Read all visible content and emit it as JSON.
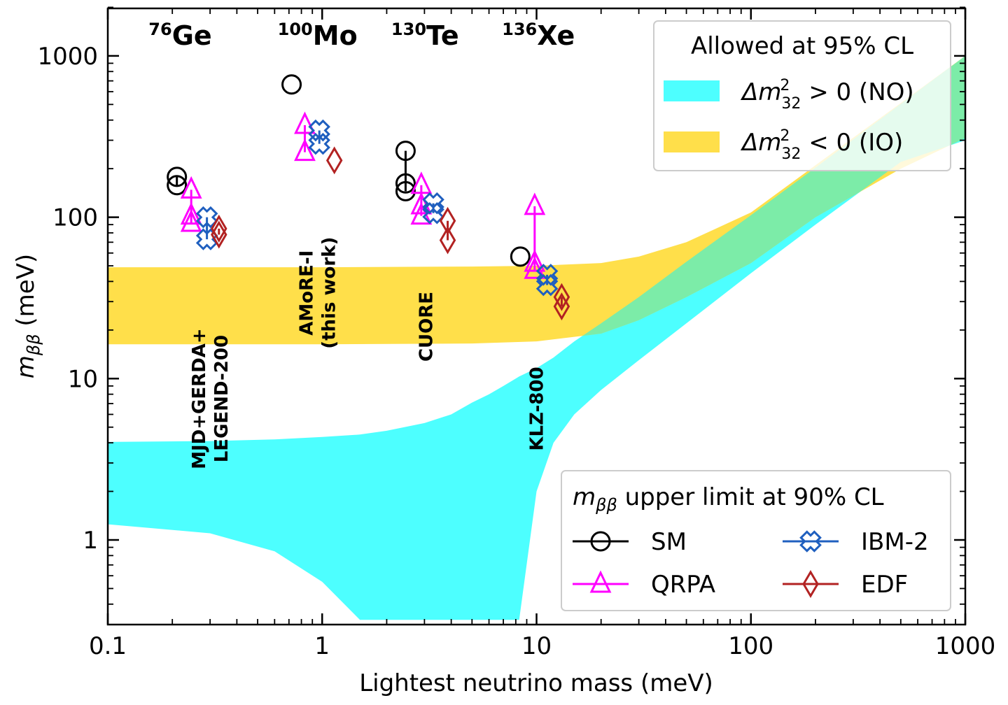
{
  "chart_data": {
    "type": "scatter",
    "x_scale": "log",
    "y_scale": "log",
    "xlabel": "Lightest neutrino mass (meV)",
    "ylabel_main": "m",
    "ylabel_sub": "ββ",
    "ylabel_unit": " (meV)",
    "xlim": [
      0.1,
      1000
    ],
    "ylim": [
      0.32,
      2000
    ],
    "x_ticks": [
      {
        "value": 0.1,
        "label": "0.1"
      },
      {
        "value": 1,
        "label": "1"
      },
      {
        "value": 10,
        "label": "10"
      },
      {
        "value": 100,
        "label": "100"
      },
      {
        "value": 1000,
        "label": "1000"
      }
    ],
    "y_ticks": [
      {
        "value": 1,
        "label": "1"
      },
      {
        "value": 10,
        "label": "10"
      },
      {
        "value": 100,
        "label": "100"
      },
      {
        "value": 1000,
        "label": "1000"
      }
    ],
    "isotopes": [
      {
        "mass": "76",
        "element": "Ge",
        "x": 0.155
      },
      {
        "mass": "100",
        "element": "Mo",
        "x": 0.62
      },
      {
        "mass": "130",
        "element": "Te",
        "x": 2.1
      },
      {
        "mass": "136",
        "element": "Xe",
        "x": 6.9
      }
    ],
    "experiments": [
      {
        "lines": [
          "MJD+GERDA+",
          "LEGEND-200"
        ],
        "x": 0.3,
        "y": 7.5
      },
      {
        "lines": [
          "AMoRE-I",
          "(this work)"
        ],
        "x": 0.95,
        "y": 34
      },
      {
        "lines": [
          "CUORE"
        ],
        "x": 3.05,
        "y": 21
      },
      {
        "lines": [
          "KLZ-800"
        ],
        "x": 10,
        "y": 6.5
      }
    ],
    "bands": [
      {
        "name": "NO",
        "color": "#4dffff",
        "x": [
          0.1,
          0.3,
          0.6,
          1,
          1.5,
          2,
          3,
          4,
          5,
          6,
          7,
          8,
          8.3,
          10,
          12,
          15,
          20,
          30,
          50,
          100,
          200,
          500,
          1000
        ],
        "lower": [
          1.25,
          1.1,
          0.85,
          0.55,
          0.32,
          0.32,
          0.32,
          0.32,
          0.32,
          0.32,
          0.32,
          0.32,
          0.32,
          2.0,
          4.0,
          6.0,
          8.5,
          13,
          22,
          45,
          90,
          220,
          300
        ],
        "upper": [
          4.05,
          4.1,
          4.2,
          4.35,
          4.5,
          4.75,
          5.3,
          6.0,
          7.1,
          8.0,
          9.0,
          10.0,
          10.3,
          11.6,
          13.5,
          17,
          22,
          32,
          53,
          103,
          203,
          503,
          1000
        ]
      },
      {
        "name": "IO",
        "color": "#ffdf4a",
        "x": [
          0.1,
          1,
          5,
          10,
          20,
          30,
          50,
          100,
          200,
          500,
          1000
        ],
        "lower": [
          16.3,
          16.3,
          16.5,
          17.0,
          19,
          23,
          32,
          52,
          100,
          200,
          310
        ],
        "upper": [
          49,
          49,
          49.5,
          50,
          52,
          57,
          70,
          107,
          210,
          510,
          1000
        ]
      }
    ],
    "overlap_color": "#50f0c8",
    "series": [
      {
        "name": "SM",
        "color": "#000000",
        "marker": "circle",
        "points": [
          {
            "x": 0.21,
            "y": 178
          },
          {
            "x": 0.21,
            "y": 158
          },
          {
            "x": 0.72,
            "y": 665
          },
          {
            "x": 2.45,
            "y": 258
          },
          {
            "x": 2.45,
            "y": 162
          },
          {
            "x": 2.45,
            "y": 145
          },
          {
            "x": 8.4,
            "y": 57
          }
        ],
        "errorbars": [
          {
            "x": 0.21,
            "y1": 158,
            "y2": 178
          },
          {
            "x": 2.45,
            "y1": 145,
            "y2": 258
          }
        ]
      },
      {
        "name": "QRPA",
        "color": "#ff00ff",
        "marker": "triangle",
        "points": [
          {
            "x": 0.245,
            "y": 148
          },
          {
            "x": 0.245,
            "y": 102
          },
          {
            "x": 0.245,
            "y": 92
          },
          {
            "x": 0.83,
            "y": 372
          },
          {
            "x": 0.83,
            "y": 253
          },
          {
            "x": 2.9,
            "y": 158
          },
          {
            "x": 2.9,
            "y": 118
          },
          {
            "x": 2.9,
            "y": 102
          },
          {
            "x": 9.8,
            "y": 117
          },
          {
            "x": 9.8,
            "y": 52
          },
          {
            "x": 9.8,
            "y": 47
          }
        ],
        "errorbars": [
          {
            "x": 0.245,
            "y1": 92,
            "y2": 148
          },
          {
            "x": 0.83,
            "y1": 253,
            "y2": 372
          },
          {
            "x": 2.9,
            "y1": 102,
            "y2": 158
          },
          {
            "x": 9.8,
            "y1": 47,
            "y2": 117
          }
        ]
      },
      {
        "name": "IBM-2",
        "color": "#1f5fbf",
        "marker": "xcross",
        "points": [
          {
            "x": 0.29,
            "y": 100
          },
          {
            "x": 0.29,
            "y": 73
          },
          {
            "x": 0.97,
            "y": 345
          },
          {
            "x": 0.97,
            "y": 285
          },
          {
            "x": 3.3,
            "y": 122
          },
          {
            "x": 3.3,
            "y": 106
          },
          {
            "x": 11.2,
            "y": 44
          },
          {
            "x": 11.2,
            "y": 38
          }
        ],
        "errorbars": [
          {
            "x": 0.29,
            "y1": 73,
            "y2": 100
          },
          {
            "x": 0.97,
            "y1": 285,
            "y2": 345
          },
          {
            "x": 3.3,
            "y1": 106,
            "y2": 122
          },
          {
            "x": 11.2,
            "y1": 38,
            "y2": 44
          }
        ]
      },
      {
        "name": "EDF",
        "color": "#b22222",
        "marker": "diamond",
        "points": [
          {
            "x": 0.33,
            "y": 85
          },
          {
            "x": 0.33,
            "y": 78
          },
          {
            "x": 1.14,
            "y": 225
          },
          {
            "x": 3.85,
            "y": 95
          },
          {
            "x": 3.85,
            "y": 72
          },
          {
            "x": 13.1,
            "y": 32
          },
          {
            "x": 13.1,
            "y": 28
          }
        ],
        "errorbars": [
          {
            "x": 0.33,
            "y1": 78,
            "y2": 85
          },
          {
            "x": 3.85,
            "y1": 72,
            "y2": 95
          },
          {
            "x": 13.1,
            "y1": 28,
            "y2": 32
          }
        ]
      }
    ],
    "legend_bands": {
      "title": "Allowed at 95% CL",
      "entries": [
        {
          "color": "#4dffff",
          "symbol": "Δm",
          "sup": "2",
          "sub": "32",
          "rel": " > 0 (NO)"
        },
        {
          "color": "#ffdf4a",
          "symbol": "Δm",
          "sup": "2",
          "sub": "32",
          "rel": " < 0 (IO)"
        }
      ],
      "placement": "top-right"
    },
    "legend_markers": {
      "title_main": "m",
      "title_sub": "ββ",
      "title_rest": " upper limit at 90% CL",
      "placement": "bottom-right"
    }
  }
}
